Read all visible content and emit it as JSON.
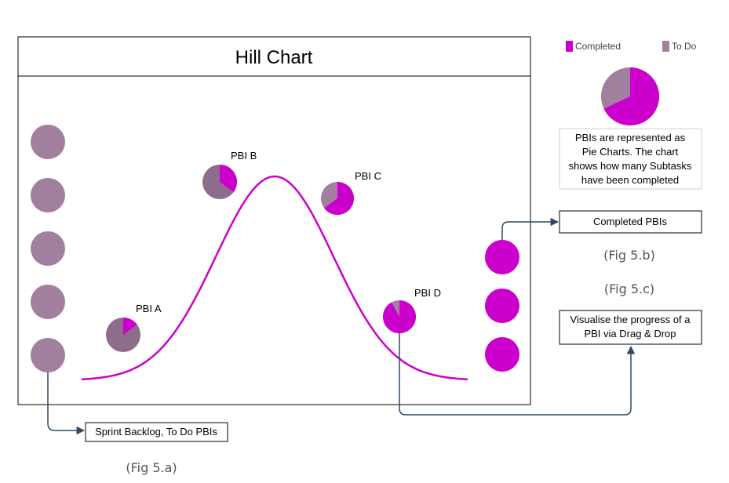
{
  "diagram": {
    "title": "Hill Chart",
    "colors": {
      "completed": "#cc00cc",
      "todo": "#a0809e",
      "todo_dark": "#8e6d8c",
      "curve": "#cc00cc",
      "arrow": "#2e4a66"
    },
    "legend": {
      "completed": "Completed",
      "todo": "To Do"
    },
    "pbis": [
      {
        "label": "PBI A",
        "completed_fraction": 0.15
      },
      {
        "label": "PBI B",
        "completed_fraction": 0.35
      },
      {
        "label": "PBI C",
        "completed_fraction": 0.65
      },
      {
        "label": "PBI D",
        "completed_fraction": 0.92
      }
    ],
    "backlog_count": 5,
    "completed_count": 3,
    "legend_pie_completed_fraction": 0.68,
    "notes": {
      "pie_explanation": [
        "PBIs are represented as",
        "Pie Charts. The chart",
        "shows how many Subtasks",
        "have been completed"
      ],
      "completed_pbis": "Completed PBIs",
      "drag_drop": [
        "Visualise the progress of a",
        "PBI via Drag & Drop"
      ],
      "sprint_backlog": "Sprint Backlog, To Do PBIs"
    },
    "fig_labels": {
      "a": "(Fig 5.a)",
      "b": "(Fig 5.b)",
      "c": "(Fig 5.c)"
    }
  }
}
